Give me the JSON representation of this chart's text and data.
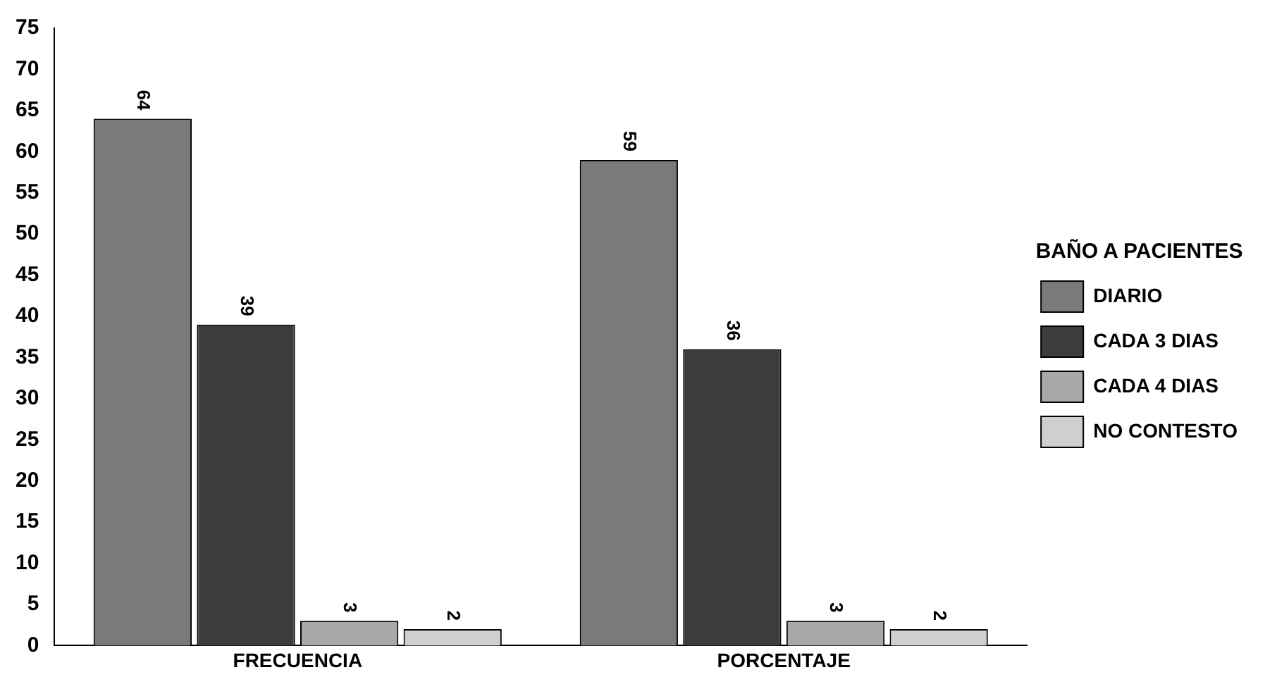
{
  "chart_data": {
    "type": "bar",
    "legend_title": "BAÑO A PACIENTES",
    "categories": [
      "FRECUENCIA",
      "PORCENTAJE"
    ],
    "series": [
      {
        "name": "DIARIO",
        "color": "#7a7a7a",
        "values": [
          64,
          59
        ]
      },
      {
        "name": "CADA 3 DIAS",
        "color": "#3c3c3c",
        "values": [
          39,
          36
        ]
      },
      {
        "name": "CADA 4 DIAS",
        "color": "#a8a8a8",
        "values": [
          3,
          3
        ]
      },
      {
        "name": "NO CONTESTO",
        "color": "#cfcfcf",
        "values": [
          2,
          2
        ]
      }
    ],
    "ylim": [
      0,
      75
    ],
    "yticks": [
      0,
      5,
      10,
      15,
      20,
      25,
      30,
      35,
      40,
      45,
      50,
      55,
      60,
      65,
      70,
      75
    ],
    "grid": false,
    "legend": "right",
    "data_labels": true
  }
}
